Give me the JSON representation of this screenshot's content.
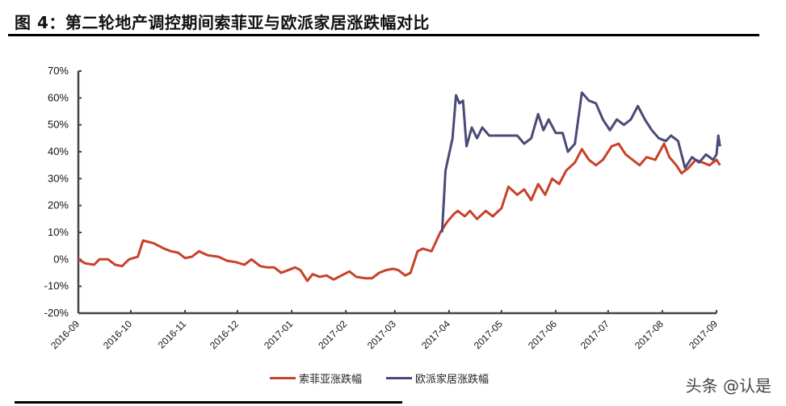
{
  "header": {
    "title": "图 4：第二轮地产调控期间索菲亚与欧派家居涨跌幅对比"
  },
  "legend": {
    "items": [
      {
        "label": "索菲亚涨跌幅",
        "color": "#c8412a"
      },
      {
        "label": "欧派家居涨跌幅",
        "color": "#4b4a78"
      }
    ]
  },
  "watermark": "头条 @认是",
  "chart_data": {
    "type": "line",
    "title": "图 4：第二轮地产调控期间索菲亚与欧派家居涨跌幅对比",
    "xlabel": "",
    "ylabel": "",
    "ylim": [
      -0.2,
      0.7
    ],
    "yticks": [
      "-20%",
      "-10%",
      "0%",
      "10%",
      "20%",
      "30%",
      "40%",
      "50%",
      "60%",
      "70%"
    ],
    "xticks": [
      "2016-09",
      "2016-10",
      "2016-11",
      "2016-12",
      "2017-01",
      "2017-02",
      "2017-03",
      "2017-04",
      "2017-05",
      "2017-06",
      "2017-07",
      "2017-08",
      "2017-09"
    ],
    "grid": false,
    "legend_position": "bottom",
    "series": [
      {
        "name": "索菲亚涨跌幅",
        "color": "#c8412a",
        "points": [
          [
            "2016-09-01",
            0.0
          ],
          [
            "2016-09-05",
            -0.015
          ],
          [
            "2016-09-10",
            -0.02
          ],
          [
            "2016-09-13",
            0.0
          ],
          [
            "2016-09-18",
            0.0
          ],
          [
            "2016-09-22",
            -0.02
          ],
          [
            "2016-09-26",
            -0.025
          ],
          [
            "2016-09-30",
            0.0
          ],
          [
            "2016-10-05",
            0.01
          ],
          [
            "2016-10-08",
            0.07
          ],
          [
            "2016-10-14",
            0.06
          ],
          [
            "2016-10-20",
            0.04
          ],
          [
            "2016-10-24",
            0.03
          ],
          [
            "2016-10-28",
            0.025
          ],
          [
            "2016-11-01",
            0.005
          ],
          [
            "2016-11-05",
            0.01
          ],
          [
            "2016-11-09",
            0.03
          ],
          [
            "2016-11-14",
            0.015
          ],
          [
            "2016-11-20",
            0.01
          ],
          [
            "2016-11-25",
            -0.005
          ],
          [
            "2016-11-30",
            -0.01
          ],
          [
            "2016-12-05",
            -0.02
          ],
          [
            "2016-12-09",
            0.0
          ],
          [
            "2016-12-14",
            -0.025
          ],
          [
            "2016-12-18",
            -0.03
          ],
          [
            "2016-12-22",
            -0.03
          ],
          [
            "2016-12-26",
            -0.05
          ],
          [
            "2016-12-30",
            -0.04
          ],
          [
            "2017-01-03",
            -0.03
          ],
          [
            "2017-01-06",
            -0.04
          ],
          [
            "2017-01-10",
            -0.08
          ],
          [
            "2017-01-13",
            -0.055
          ],
          [
            "2017-01-17",
            -0.065
          ],
          [
            "2017-01-21",
            -0.06
          ],
          [
            "2017-01-25",
            -0.075
          ],
          [
            "2017-02-03",
            -0.045
          ],
          [
            "2017-02-07",
            -0.065
          ],
          [
            "2017-02-12",
            -0.07
          ],
          [
            "2017-02-16",
            -0.07
          ],
          [
            "2017-02-20",
            -0.05
          ],
          [
            "2017-02-24",
            -0.04
          ],
          [
            "2017-02-28",
            -0.035
          ],
          [
            "2017-03-03",
            -0.04
          ],
          [
            "2017-03-07",
            -0.06
          ],
          [
            "2017-03-10",
            -0.05
          ],
          [
            "2017-03-14",
            0.03
          ],
          [
            "2017-03-17",
            0.04
          ],
          [
            "2017-03-22",
            0.03
          ],
          [
            "2017-03-27",
            0.1
          ],
          [
            "2017-03-31",
            0.14
          ],
          [
            "2017-04-04",
            0.17
          ],
          [
            "2017-04-06",
            0.18
          ],
          [
            "2017-04-10",
            0.16
          ],
          [
            "2017-04-13",
            0.18
          ],
          [
            "2017-04-17",
            0.15
          ],
          [
            "2017-04-22",
            0.18
          ],
          [
            "2017-04-26",
            0.16
          ],
          [
            "2017-05-01",
            0.19
          ],
          [
            "2017-05-05",
            0.27
          ],
          [
            "2017-05-10",
            0.24
          ],
          [
            "2017-05-14",
            0.26
          ],
          [
            "2017-05-18",
            0.22
          ],
          [
            "2017-05-22",
            0.28
          ],
          [
            "2017-05-26",
            0.24
          ],
          [
            "2017-05-30",
            0.3
          ],
          [
            "2017-06-03",
            0.28
          ],
          [
            "2017-06-07",
            0.33
          ],
          [
            "2017-06-12",
            0.36
          ],
          [
            "2017-06-16",
            0.41
          ],
          [
            "2017-06-20",
            0.37
          ],
          [
            "2017-06-24",
            0.35
          ],
          [
            "2017-06-28",
            0.37
          ],
          [
            "2017-07-03",
            0.42
          ],
          [
            "2017-07-07",
            0.43
          ],
          [
            "2017-07-11",
            0.39
          ],
          [
            "2017-07-15",
            0.37
          ],
          [
            "2017-07-19",
            0.35
          ],
          [
            "2017-07-23",
            0.38
          ],
          [
            "2017-07-28",
            0.37
          ],
          [
            "2017-08-02",
            0.43
          ],
          [
            "2017-08-05",
            0.38
          ],
          [
            "2017-08-09",
            0.35
          ],
          [
            "2017-08-12",
            0.32
          ],
          [
            "2017-08-16",
            0.34
          ],
          [
            "2017-08-20",
            0.37
          ],
          [
            "2017-08-24",
            0.36
          ],
          [
            "2017-08-28",
            0.35
          ],
          [
            "2017-09-01",
            0.37
          ],
          [
            "2017-09-03",
            0.35
          ]
        ]
      },
      {
        "name": "欧派家居涨跌幅",
        "color": "#4b4a78",
        "points": [
          [
            "2017-03-28",
            0.1
          ],
          [
            "2017-03-30",
            0.33
          ],
          [
            "2017-04-03",
            0.45
          ],
          [
            "2017-04-05",
            0.61
          ],
          [
            "2017-04-07",
            0.58
          ],
          [
            "2017-04-09",
            0.59
          ],
          [
            "2017-04-11",
            0.42
          ],
          [
            "2017-04-14",
            0.49
          ],
          [
            "2017-04-17",
            0.45
          ],
          [
            "2017-04-20",
            0.49
          ],
          [
            "2017-04-24",
            0.46
          ],
          [
            "2017-05-02",
            0.46
          ],
          [
            "2017-05-06",
            0.46
          ],
          [
            "2017-05-10",
            0.46
          ],
          [
            "2017-05-14",
            0.43
          ],
          [
            "2017-05-18",
            0.45
          ],
          [
            "2017-05-22",
            0.54
          ],
          [
            "2017-05-25",
            0.48
          ],
          [
            "2017-05-28",
            0.52
          ],
          [
            "2017-06-01",
            0.47
          ],
          [
            "2017-06-05",
            0.47
          ],
          [
            "2017-06-08",
            0.4
          ],
          [
            "2017-06-12",
            0.43
          ],
          [
            "2017-06-16",
            0.62
          ],
          [
            "2017-06-20",
            0.59
          ],
          [
            "2017-06-24",
            0.58
          ],
          [
            "2017-06-28",
            0.52
          ],
          [
            "2017-07-02",
            0.48
          ],
          [
            "2017-07-06",
            0.52
          ],
          [
            "2017-07-10",
            0.5
          ],
          [
            "2017-07-14",
            0.52
          ],
          [
            "2017-07-18",
            0.57
          ],
          [
            "2017-07-22",
            0.52
          ],
          [
            "2017-07-26",
            0.48
          ],
          [
            "2017-07-30",
            0.45
          ],
          [
            "2017-08-03",
            0.44
          ],
          [
            "2017-08-06",
            0.46
          ],
          [
            "2017-08-10",
            0.44
          ],
          [
            "2017-08-14",
            0.34
          ],
          [
            "2017-08-18",
            0.38
          ],
          [
            "2017-08-22",
            0.36
          ],
          [
            "2017-08-26",
            0.39
          ],
          [
            "2017-08-30",
            0.37
          ],
          [
            "2017-09-01",
            0.39
          ],
          [
            "2017-09-02",
            0.46
          ],
          [
            "2017-09-03",
            0.42
          ]
        ]
      }
    ]
  }
}
